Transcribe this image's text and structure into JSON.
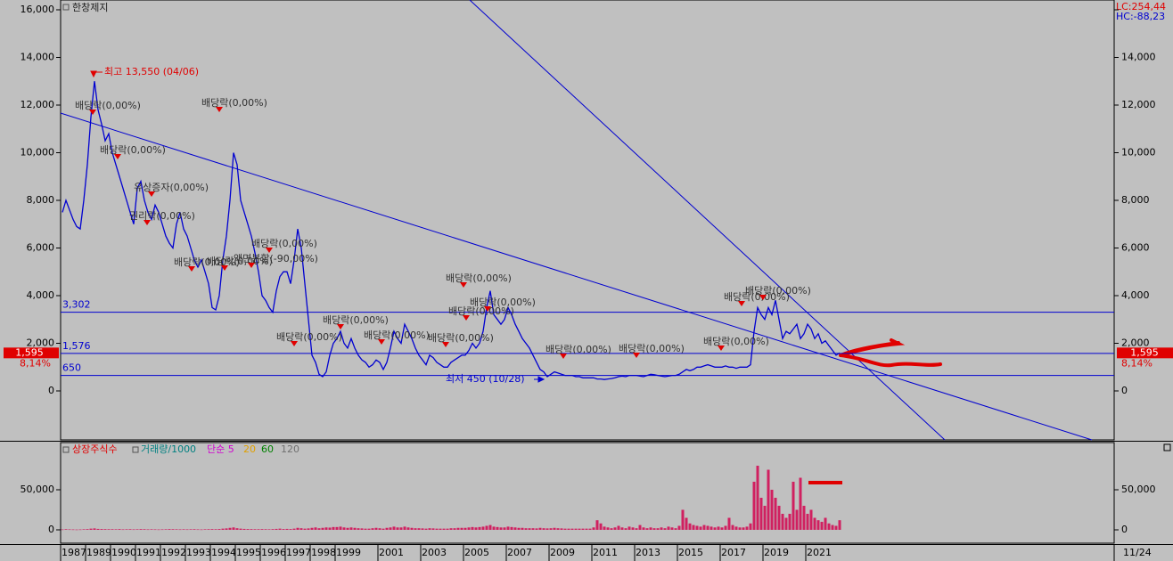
{
  "chart_data": [
    {
      "type": "line",
      "title": "한창제지",
      "color": "#0000d0",
      "lc": "LC:254,44",
      "hc": "HC:-88,23",
      "categories": [
        "1987",
        null,
        null,
        null,
        null,
        null,
        null,
        "1989",
        null,
        null,
        null,
        null,
        null,
        null,
        "1990",
        null,
        null,
        null,
        null,
        null,
        null,
        "1991",
        null,
        null,
        null,
        null,
        null,
        null,
        "1992",
        null,
        null,
        null,
        null,
        null,
        null,
        "1993",
        null,
        null,
        null,
        null,
        null,
        null,
        "1994",
        null,
        null,
        null,
        null,
        null,
        null,
        "1995",
        null,
        null,
        null,
        null,
        null,
        null,
        "1996",
        null,
        null,
        null,
        null,
        null,
        null,
        "1997",
        null,
        null,
        null,
        null,
        null,
        null,
        "1998",
        null,
        null,
        null,
        null,
        null,
        null,
        "1999",
        null,
        null,
        null,
        null,
        null,
        null,
        null,
        null,
        null,
        null,
        null,
        "2001",
        null,
        null,
        null,
        null,
        null,
        null,
        null,
        null,
        null,
        null,
        null,
        "2003",
        null,
        null,
        null,
        null,
        null,
        null,
        null,
        null,
        null,
        null,
        null,
        "2005",
        null,
        null,
        null,
        null,
        null,
        null,
        null,
        null,
        null,
        null,
        null,
        "2007",
        null,
        null,
        null,
        null,
        null,
        null,
        null,
        null,
        null,
        null,
        null,
        "2009",
        null,
        null,
        null,
        null,
        null,
        null,
        null,
        null,
        null,
        null,
        null,
        "2011",
        null,
        null,
        null,
        null,
        null,
        null,
        null,
        null,
        null,
        null,
        null,
        "2013",
        null,
        null,
        null,
        null,
        null,
        null,
        null,
        null,
        null,
        null,
        null,
        "2015",
        null,
        null,
        null,
        null,
        null,
        null,
        null,
        null,
        null,
        null,
        null,
        "2017",
        null,
        null,
        null,
        null,
        null,
        null,
        null,
        null,
        null,
        null,
        null,
        "2019",
        null,
        null,
        null,
        null,
        null,
        null,
        null,
        null,
        null,
        null,
        null,
        "2021",
        null,
        null,
        null,
        null,
        null,
        null,
        null,
        null,
        null
      ],
      "values": [
        7500,
        8000,
        7600,
        7200,
        6900,
        6800,
        8000,
        9500,
        11500,
        13000,
        11800,
        11200,
        10500,
        10800,
        10000,
        9500,
        9000,
        8500,
        8000,
        7500,
        7000,
        8500,
        8800,
        8000,
        7500,
        7200,
        7800,
        7500,
        7000,
        6500,
        6200,
        6000,
        7000,
        7500,
        6800,
        6500,
        6000,
        5500,
        5200,
        5500,
        5000,
        4500,
        3500,
        3400,
        4000,
        5500,
        6500,
        8000,
        10000,
        9500,
        8000,
        7500,
        7000,
        6500,
        5800,
        5000,
        4000,
        3800,
        3500,
        3300,
        4200,
        4800,
        5000,
        5000,
        4500,
        5500,
        6800,
        6000,
        4500,
        3000,
        1500,
        1200,
        700,
        600,
        800,
        1500,
        2000,
        2200,
        2500,
        2000,
        1800,
        2200,
        1800,
        1500,
        1300,
        1200,
        1000,
        1100,
        1300,
        1200,
        900,
        1200,
        1800,
        2500,
        2200,
        2000,
        2800,
        2500,
        2200,
        1800,
        1500,
        1300,
        1100,
        1500,
        1400,
        1200,
        1100,
        1000,
        1000,
        1200,
        1300,
        1400,
        1500,
        1500,
        1700,
        2000,
        1800,
        2000,
        2500,
        3500,
        4200,
        3200,
        3000,
        2800,
        3000,
        3500,
        3200,
        2800,
        2500,
        2200,
        2000,
        1800,
        1500,
        1200,
        900,
        800,
        600,
        700,
        800,
        750,
        700,
        650,
        650,
        650,
        600,
        600,
        550,
        550,
        550,
        550,
        500,
        500,
        480,
        500,
        520,
        550,
        600,
        620,
        600,
        650,
        650,
        650,
        620,
        600,
        650,
        700,
        680,
        650,
        620,
        600,
        620,
        650,
        650,
        700,
        800,
        900,
        850,
        900,
        1000,
        1000,
        1050,
        1100,
        1050,
        1000,
        1000,
        1000,
        1050,
        1000,
        1000,
        950,
        1000,
        1000,
        1000,
        1100,
        2500,
        3500,
        3200,
        3000,
        3500,
        3200,
        3800,
        3000,
        2200,
        2500,
        2400,
        2600,
        2800,
        2200,
        2400,
        2800,
        2600,
        2200,
        2400,
        2000,
        2100,
        1900,
        1700,
        1500,
        1595
      ],
      "ylim": [
        -2056,
        16411
      ],
      "yticks": [
        0,
        {
          "value": 2000,
          "label": "2,000"
        },
        {
          "value": 4000,
          "label": "4,000"
        },
        {
          "value": 6000,
          "label": "6,000"
        },
        {
          "value": 8000,
          "label": "8,000"
        },
        {
          "value": 10000,
          "label": "10,000"
        },
        {
          "value": 12000,
          "label": "12,000"
        },
        {
          "value": 14000,
          "label": "14,000"
        },
        {
          "value": 16000,
          "label": "16,000"
        }
      ],
      "levels": [
        {
          "value": 3302,
          "label": "3,302"
        },
        {
          "value": 1576,
          "label": "1,576"
        },
        {
          "value": 650,
          "label": "650"
        }
      ],
      "last_price": {
        "value": 1595,
        "label": "1,595"
      },
      "change": "8,14%",
      "annotations": [
        {
          "text": "최고 13,550 (04/06)",
          "color": "#e00000"
        },
        {
          "text": "배당락(0,00%)",
          "color": "#303030"
        },
        {
          "text": "배당락(0,00%)",
          "color": "#303030"
        },
        {
          "text": "배당락(0,00%)",
          "color": "#303030"
        },
        {
          "text": "유상증자(0,00%)",
          "color": "#303030"
        },
        {
          "text": "권리락(0,00%)",
          "color": "#303030"
        },
        {
          "text": "배당락(0,00%)",
          "color": "#303030"
        },
        {
          "text": "배당락(0,00%)",
          "color": "#303030"
        },
        {
          "text": "배당락(0,00%)",
          "color": "#303030"
        },
        {
          "text": "액면분할(-90,00%)",
          "color": "#303030"
        },
        {
          "text": "배당락(0,00%)",
          "color": "#303030"
        },
        {
          "text": "배당락(0,00%)",
          "color": "#303030"
        },
        {
          "text": "배당락(0,00%)",
          "color": "#303030"
        },
        {
          "text": "배당락(0,00%)",
          "color": "#303030"
        },
        {
          "text": "배당락(0,00%)",
          "color": "#303030"
        },
        {
          "text": "배당락(0,00%)",
          "color": "#303030"
        },
        {
          "text": "배당락(0,00%)",
          "color": "#303030"
        },
        {
          "text": "배당락(0,00%)",
          "color": "#303030"
        },
        {
          "text": "배당락(0,00%)",
          "color": "#303030"
        },
        {
          "text": "배당락(0,00%)",
          "color": "#303030"
        },
        {
          "text": "배당락(0,00%)",
          "color": "#303030"
        },
        {
          "text": "배당락(0,00%)",
          "color": "#303030"
        },
        {
          "text": "최저 450 (10/28)",
          "color": "#0000d0"
        }
      ],
      "end_label": "11/24"
    },
    {
      "type": "bar",
      "indicators": [
        {
          "name": "상장주식수",
          "color": "#e00000"
        },
        {
          "name": "단순 5",
          "color": "#d000d0"
        },
        {
          "name": "20",
          "color": "#e0a000"
        },
        {
          "name": "60",
          "color": "#008000"
        },
        {
          "name": "120",
          "color": "#707070"
        }
      ],
      "series": [
        {
          "name": "거래량/1000",
          "color": "#d02060",
          "label_color": "#008080",
          "values": [
            500,
            800,
            600,
            500,
            400,
            500,
            700,
            900,
            1500,
            1800,
            1200,
            1000,
            900,
            800,
            800,
            700,
            900,
            600,
            700,
            800,
            600,
            700,
            900,
            800,
            600,
            700,
            600,
            500,
            600,
            700,
            900,
            800,
            700,
            600,
            700,
            600,
            700,
            800,
            600,
            500,
            700,
            800,
            900,
            800,
            1000,
            1500,
            1800,
            2500,
            3000,
            2000,
            1500,
            1200,
            1000,
            900,
            800,
            800,
            900,
            800,
            700,
            900,
            1200,
            1500,
            1000,
            1200,
            1000,
            1500,
            2500,
            2000,
            1500,
            1800,
            2500,
            3000,
            2000,
            2500,
            3000,
            2800,
            3500,
            3500,
            4000,
            3000,
            2500,
            3000,
            2500,
            2000,
            1800,
            1500,
            1500,
            2000,
            2500,
            2000,
            1500,
            2500,
            3000,
            4000,
            3000,
            3000,
            4000,
            3000,
            2500,
            2000,
            2000,
            1800,
            1500,
            2000,
            1800,
            1500,
            1500,
            1500,
            1500,
            2000,
            2000,
            2500,
            2500,
            2500,
            3000,
            3500,
            3000,
            3500,
            4000,
            5000,
            6000,
            4000,
            3500,
            3000,
            3000,
            4000,
            3500,
            3000,
            2500,
            2500,
            2000,
            2000,
            2000,
            1800,
            2500,
            2000,
            1800,
            2000,
            2500,
            2000,
            1800,
            1500,
            1500,
            1500,
            1500,
            1500,
            1500,
            1500,
            1500,
            3000,
            12000,
            8000,
            4000,
            3000,
            2000,
            3000,
            5000,
            3000,
            2000,
            4000,
            3000,
            2000,
            6000,
            3000,
            2000,
            3000,
            2000,
            2000,
            3000,
            2000,
            4000,
            3000,
            2000,
            5000,
            25000,
            15000,
            8000,
            6000,
            5000,
            4000,
            6000,
            5000,
            4000,
            3000,
            4000,
            3000,
            5000,
            15000,
            6000,
            4000,
            3000,
            3000,
            4000,
            8000,
            60000,
            80000,
            40000,
            30000,
            75000,
            50000,
            40000,
            30000,
            20000,
            15000,
            20000,
            60000,
            25000,
            65000,
            30000,
            20000,
            25000,
            15000,
            12000,
            10000,
            15000,
            8000,
            6000,
            5000,
            12000
          ]
        }
      ],
      "ylim": [
        -16667,
        108889
      ],
      "yticks": [
        0,
        {
          "value": 50000,
          "label": "50,000"
        }
      ]
    }
  ]
}
